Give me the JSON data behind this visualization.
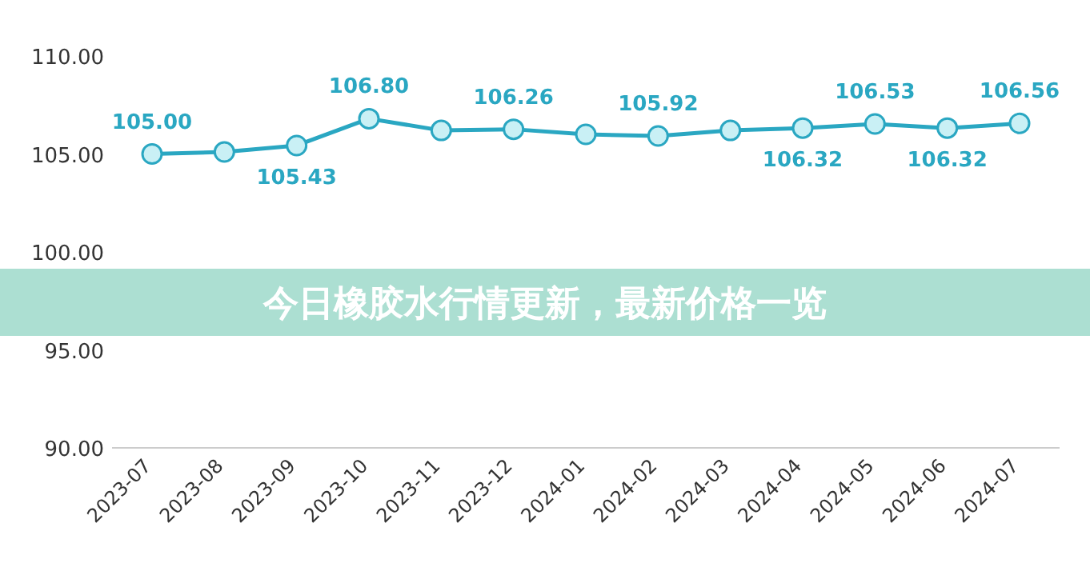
{
  "chart_data": {
    "type": "line",
    "title": "今日橡胶水行情更新，最新价格一览",
    "categories": [
      "2023-07",
      "2023-08",
      "2023-09",
      "2023-10",
      "2023-11",
      "2023-12",
      "2024-01",
      "2024-02",
      "2024-03",
      "2024-04",
      "2024-05",
      "2024-06",
      "2024-07"
    ],
    "series": [
      {
        "color": "#2aa7c2",
        "values": [
          105.0,
          105.1,
          105.43,
          106.8,
          106.2,
          106.26,
          106.0,
          105.92,
          106.2,
          106.32,
          106.53,
          106.32,
          106.56
        ],
        "value_labels": [
          "105.00",
          null,
          "105.43",
          "106.80",
          null,
          "106.26",
          null,
          "105.92",
          null,
          "106.32",
          "106.53",
          "106.32",
          "106.56"
        ]
      }
    ],
    "ylim": [
      90,
      110
    ],
    "yticks": [
      {
        "value": 90,
        "label": "90.00"
      },
      {
        "value": 95,
        "label": "95.00"
      },
      {
        "value": 100,
        "label": "100.00"
      },
      {
        "value": 105,
        "label": "105.00"
      },
      {
        "value": 110,
        "label": "110.00"
      }
    ],
    "marker": "circle",
    "grid": false
  }
}
